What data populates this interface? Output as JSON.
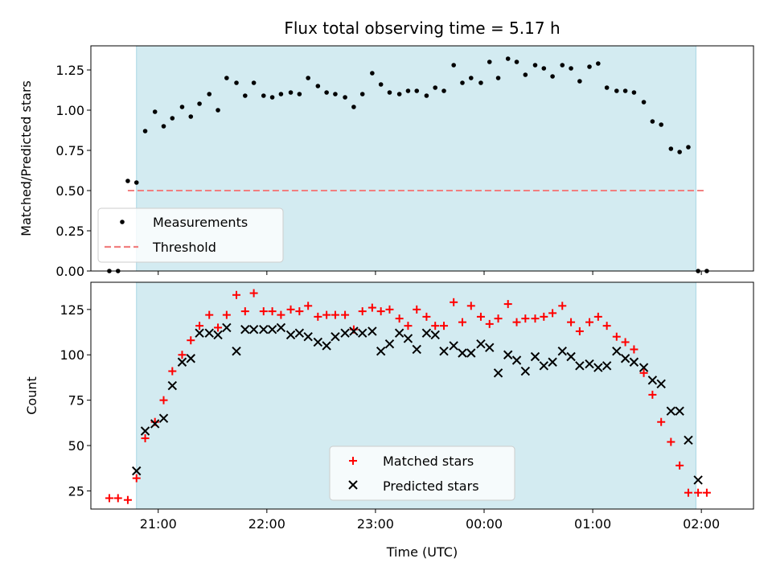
{
  "chart_data": [
    {
      "type": "scatter",
      "panel": "top",
      "title": "Flux total observing time = 5.17 h",
      "xlabel": "",
      "ylabel": "Matched/Predicted stars",
      "xlim": [
        20.38,
        2.48
      ],
      "ylim": [
        0.0,
        1.4
      ],
      "yticks": [
        0.0,
        0.25,
        0.5,
        0.75,
        1.0,
        1.25
      ],
      "yticklabels": [
        "0.00",
        "0.25",
        "0.50",
        "0.75",
        "1.00",
        "1.25"
      ],
      "shaded_span": [
        20.8,
        1.95
      ],
      "shaded_color": "#d3ebf1",
      "legend_position": "lower-left",
      "series": [
        {
          "name": "Measurements",
          "marker": "dot",
          "color": "#000000",
          "x": [
            20.55,
            20.63,
            20.72,
            20.8,
            20.88,
            20.97,
            21.05,
            21.13,
            21.22,
            21.3,
            21.38,
            21.47,
            21.55,
            21.63,
            21.72,
            21.8,
            21.88,
            21.97,
            22.05,
            22.13,
            22.22,
            22.3,
            22.38,
            22.47,
            22.55,
            22.63,
            22.72,
            22.8,
            22.88,
            22.97,
            23.05,
            23.13,
            23.22,
            23.3,
            23.38,
            23.47,
            23.55,
            23.63,
            23.72,
            23.8,
            23.88,
            23.97,
            0.05,
            0.13,
            0.22,
            0.3,
            0.38,
            0.47,
            0.55,
            0.63,
            0.72,
            0.8,
            0.88,
            0.97,
            1.05,
            1.13,
            1.22,
            1.3,
            1.38,
            1.47,
            1.55,
            1.63,
            1.72,
            1.8,
            1.88,
            1.97,
            2.05
          ],
          "y": [
            0.0,
            0.0,
            0.56,
            0.55,
            0.87,
            0.99,
            0.9,
            0.95,
            1.02,
            0.96,
            1.04,
            1.1,
            1.0,
            1.2,
            1.17,
            1.09,
            1.17,
            1.09,
            1.08,
            1.1,
            1.11,
            1.1,
            1.2,
            1.15,
            1.11,
            1.1,
            1.08,
            1.02,
            1.1,
            1.23,
            1.16,
            1.11,
            1.1,
            1.12,
            1.12,
            1.09,
            1.14,
            1.12,
            1.28,
            1.17,
            1.2,
            1.17,
            1.3,
            1.2,
            1.32,
            1.3,
            1.22,
            1.28,
            1.26,
            1.21,
            1.28,
            1.26,
            1.18,
            1.27,
            1.29,
            1.14,
            1.12,
            1.12,
            1.11,
            1.05,
            0.93,
            0.91,
            0.76,
            0.74,
            0.77,
            0.0,
            0.0
          ]
        },
        {
          "name": "Threshold",
          "marker": "dashed-line",
          "color": "#f17f7f",
          "x": [
            20.72,
            2.05
          ],
          "y": [
            0.5,
            0.5
          ]
        }
      ]
    },
    {
      "type": "scatter",
      "panel": "bottom",
      "title": "",
      "xlabel": "Time (UTC)",
      "ylabel": "Count",
      "xlim": [
        20.38,
        2.48
      ],
      "ylim": [
        15,
        140
      ],
      "xticks": [
        21,
        22,
        23,
        0,
        1,
        2
      ],
      "xticklabels": [
        "21:00",
        "22:00",
        "23:00",
        "00:00",
        "01:00",
        "02:00"
      ],
      "yticks": [
        25,
        50,
        75,
        100,
        125
      ],
      "yticklabels": [
        "25",
        "50",
        "75",
        "100",
        "125"
      ],
      "shaded_span": [
        20.8,
        1.95
      ],
      "shaded_color": "#d3ebf1",
      "legend_position": "lower-center",
      "series": [
        {
          "name": "Matched stars",
          "marker": "plus",
          "color": "#ff0000",
          "x": [
            20.55,
            20.63,
            20.72,
            20.8,
            20.88,
            20.97,
            21.05,
            21.13,
            21.22,
            21.3,
            21.38,
            21.47,
            21.55,
            21.63,
            21.72,
            21.8,
            21.88,
            21.97,
            22.05,
            22.13,
            22.22,
            22.3,
            22.38,
            22.47,
            22.55,
            22.63,
            22.72,
            22.8,
            22.88,
            22.97,
            23.05,
            23.13,
            23.22,
            23.3,
            23.38,
            23.47,
            23.55,
            23.63,
            23.72,
            23.8,
            23.88,
            23.97,
            0.05,
            0.13,
            0.22,
            0.3,
            0.38,
            0.47,
            0.55,
            0.63,
            0.72,
            0.8,
            0.88,
            0.97,
            1.05,
            1.13,
            1.22,
            1.3,
            1.38,
            1.47,
            1.55,
            1.63,
            1.72,
            1.8,
            1.88,
            1.97,
            2.05
          ],
          "y": [
            21,
            21,
            20,
            32,
            54,
            63,
            75,
            91,
            100,
            108,
            116,
            122,
            115,
            122,
            133,
            124,
            134,
            124,
            124,
            122,
            125,
            124,
            127,
            121,
            122,
            122,
            122,
            114,
            124,
            126,
            124,
            125,
            120,
            116,
            125,
            121,
            116,
            116,
            129,
            118,
            127,
            121,
            117,
            120,
            128,
            118,
            120,
            120,
            121,
            123,
            127,
            118,
            113,
            118,
            121,
            116,
            110,
            107,
            103,
            90,
            78,
            63,
            52,
            39,
            24,
            24,
            24
          ]
        },
        {
          "name": "Predicted stars",
          "marker": "x",
          "color": "#000000",
          "x": [
            20.8,
            20.88,
            20.97,
            21.05,
            21.13,
            21.22,
            21.3,
            21.38,
            21.47,
            21.55,
            21.63,
            21.72,
            21.8,
            21.88,
            21.97,
            22.05,
            22.13,
            22.22,
            22.3,
            22.38,
            22.47,
            22.55,
            22.63,
            22.72,
            22.8,
            22.88,
            22.97,
            23.05,
            23.13,
            23.22,
            23.3,
            23.38,
            23.47,
            23.55,
            23.63,
            23.72,
            23.8,
            23.88,
            23.97,
            0.05,
            0.13,
            0.22,
            0.3,
            0.38,
            0.47,
            0.55,
            0.63,
            0.72,
            0.8,
            0.88,
            0.97,
            1.05,
            1.13,
            1.22,
            1.3,
            1.38,
            1.47,
            1.55,
            1.63,
            1.72,
            1.8,
            1.88,
            1.97
          ],
          "y": [
            36,
            58,
            62,
            65,
            83,
            96,
            98,
            112,
            112,
            111,
            115,
            102,
            114,
            114,
            114,
            114,
            115,
            111,
            112,
            110,
            107,
            105,
            110,
            112,
            113,
            112,
            113,
            102,
            106,
            112,
            109,
            103,
            112,
            111,
            102,
            105,
            101,
            101,
            106,
            104,
            90,
            100,
            97,
            91,
            99,
            94,
            96,
            102,
            99,
            94,
            95,
            93,
            94,
            102,
            98,
            96,
            93,
            86,
            84,
            69,
            69,
            53,
            31
          ]
        }
      ]
    }
  ]
}
